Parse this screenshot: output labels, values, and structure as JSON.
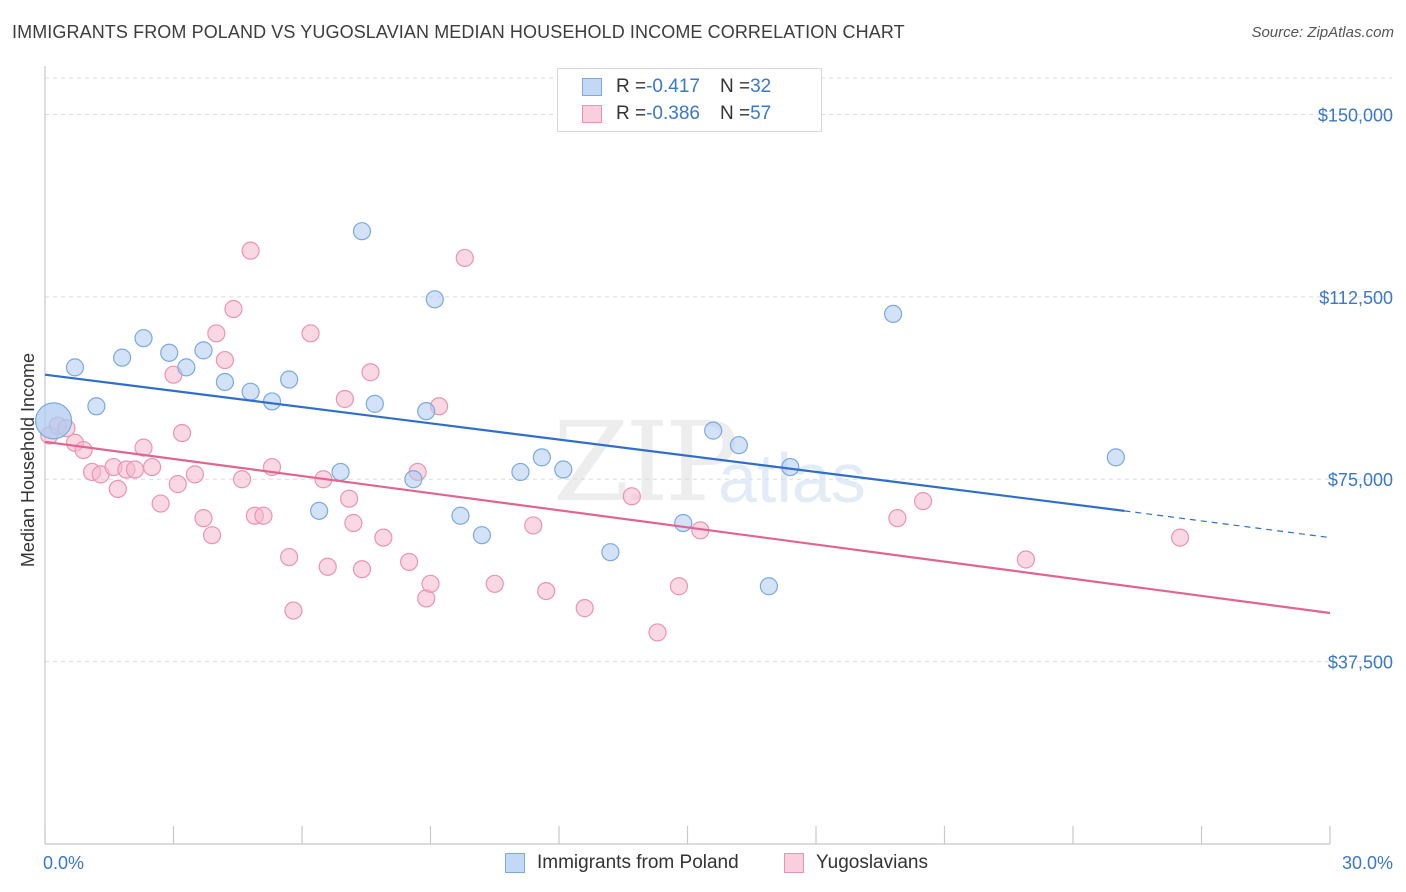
{
  "title": "IMMIGRANTS FROM POLAND VS YUGOSLAVIAN MEDIAN HOUSEHOLD INCOME CORRELATION CHART",
  "source": "Source: ZipAtlas.com",
  "watermark": {
    "zip": "ZIP",
    "atlas": "atlas"
  },
  "legend": {
    "rows": [
      {
        "r_label": "R = ",
        "r_value": "-0.417",
        "n_label": "N = ",
        "n_value": "32"
      },
      {
        "r_label": "R = ",
        "r_value": "-0.386",
        "n_label": "N = ",
        "n_value": "57"
      }
    ]
  },
  "colors": {
    "poland_fill": "#aecbf0",
    "poland_stroke": "#7aaae0",
    "poland_line": "#2f6fcb",
    "yugo_fill": "#f6b8cc",
    "yugo_stroke": "#eb94b1",
    "yugo_line": "#e0668f",
    "tick_label": "#3b78c8",
    "grid": "#dcdcdc"
  },
  "chart_data": {
    "type": "scatter",
    "title": "IMMIGRANTS FROM POLAND VS YUGOSLAVIAN MEDIAN HOUSEHOLD INCOME CORRELATION CHART",
    "xlabel": "",
    "ylabel": "Median Household Income",
    "xlim": [
      0,
      30
    ],
    "ylim": [
      0,
      157500
    ],
    "yticks": [
      37500,
      75000,
      112500,
      150000
    ],
    "ytick_labels": [
      "$37,500",
      "$75,000",
      "$112,500",
      "$150,000"
    ],
    "xtick_labels": [
      "0.0%",
      "30.0%"
    ],
    "grid": "horizontal dashed",
    "legend_position": "top-center",
    "series": [
      {
        "name": "Immigrants from Poland",
        "points": [
          [
            0.2,
            87000
          ],
          [
            0.7,
            98000
          ],
          [
            1.2,
            90000
          ],
          [
            1.8,
            100000
          ],
          [
            2.3,
            104000
          ],
          [
            2.9,
            101000
          ],
          [
            3.3,
            98000
          ],
          [
            3.7,
            101500
          ],
          [
            4.2,
            95000
          ],
          [
            4.8,
            93000
          ],
          [
            5.3,
            91000
          ],
          [
            5.7,
            95500
          ],
          [
            6.4,
            68500
          ],
          [
            6.9,
            76500
          ],
          [
            7.4,
            126000
          ],
          [
            7.7,
            90500
          ],
          [
            8.6,
            75000
          ],
          [
            8.9,
            89000
          ],
          [
            9.1,
            112000
          ],
          [
            9.7,
            67500
          ],
          [
            10.2,
            63500
          ],
          [
            11.1,
            76500
          ],
          [
            11.6,
            79500
          ],
          [
            12.1,
            77000
          ],
          [
            13.2,
            60000
          ],
          [
            14.9,
            66000
          ],
          [
            15.6,
            85000
          ],
          [
            16.2,
            82000
          ],
          [
            16.9,
            53000
          ],
          [
            17.4,
            77500
          ],
          [
            19.8,
            109000
          ],
          [
            25.0,
            79500
          ]
        ]
      },
      {
        "name": "Yugoslavians",
        "points": [
          [
            0.1,
            84000
          ],
          [
            0.3,
            86000
          ],
          [
            0.5,
            85500
          ],
          [
            0.7,
            82500
          ],
          [
            0.9,
            81000
          ],
          [
            1.1,
            76500
          ],
          [
            1.3,
            76000
          ],
          [
            1.6,
            77500
          ],
          [
            1.7,
            73000
          ],
          [
            1.9,
            77000
          ],
          [
            2.1,
            77000
          ],
          [
            2.3,
            81500
          ],
          [
            2.5,
            77500
          ],
          [
            2.7,
            70000
          ],
          [
            3.0,
            96500
          ],
          [
            3.1,
            74000
          ],
          [
            3.2,
            84500
          ],
          [
            3.5,
            76000
          ],
          [
            3.7,
            67000
          ],
          [
            3.9,
            63500
          ],
          [
            4.0,
            105000
          ],
          [
            4.2,
            99500
          ],
          [
            4.4,
            110000
          ],
          [
            4.6,
            75000
          ],
          [
            4.8,
            122000
          ],
          [
            4.9,
            67500
          ],
          [
            5.1,
            67500
          ],
          [
            5.3,
            77500
          ],
          [
            5.7,
            59000
          ],
          [
            5.8,
            48000
          ],
          [
            6.2,
            105000
          ],
          [
            6.5,
            75000
          ],
          [
            6.6,
            57000
          ],
          [
            7.0,
            91500
          ],
          [
            7.1,
            71000
          ],
          [
            7.2,
            66000
          ],
          [
            7.4,
            56500
          ],
          [
            7.6,
            97000
          ],
          [
            7.9,
            63000
          ],
          [
            8.5,
            58000
          ],
          [
            8.7,
            76500
          ],
          [
            8.9,
            50500
          ],
          [
            9.0,
            53500
          ],
          [
            9.2,
            90000
          ],
          [
            9.8,
            120500
          ],
          [
            10.5,
            53500
          ],
          [
            11.4,
            65500
          ],
          [
            11.7,
            52000
          ],
          [
            12.6,
            48500
          ],
          [
            13.7,
            71500
          ],
          [
            14.3,
            43500
          ],
          [
            14.8,
            53000
          ],
          [
            15.3,
            64500
          ],
          [
            19.9,
            67000
          ],
          [
            20.5,
            70500
          ],
          [
            22.9,
            58500
          ],
          [
            26.5,
            63000
          ]
        ]
      }
    ],
    "trendlines": [
      {
        "series": "Immigrants from Poland",
        "x": [
          0,
          25.2
        ],
        "y": [
          96500,
          68500
        ],
        "dashed_to": [
          30,
          63000
        ]
      },
      {
        "series": "Yugoslavians",
        "x": [
          0,
          30
        ],
        "y": [
          82700,
          47500
        ]
      }
    ]
  },
  "bottom_legend": [
    {
      "label": "Immigrants from Poland"
    },
    {
      "label": "Yugoslavians"
    }
  ]
}
